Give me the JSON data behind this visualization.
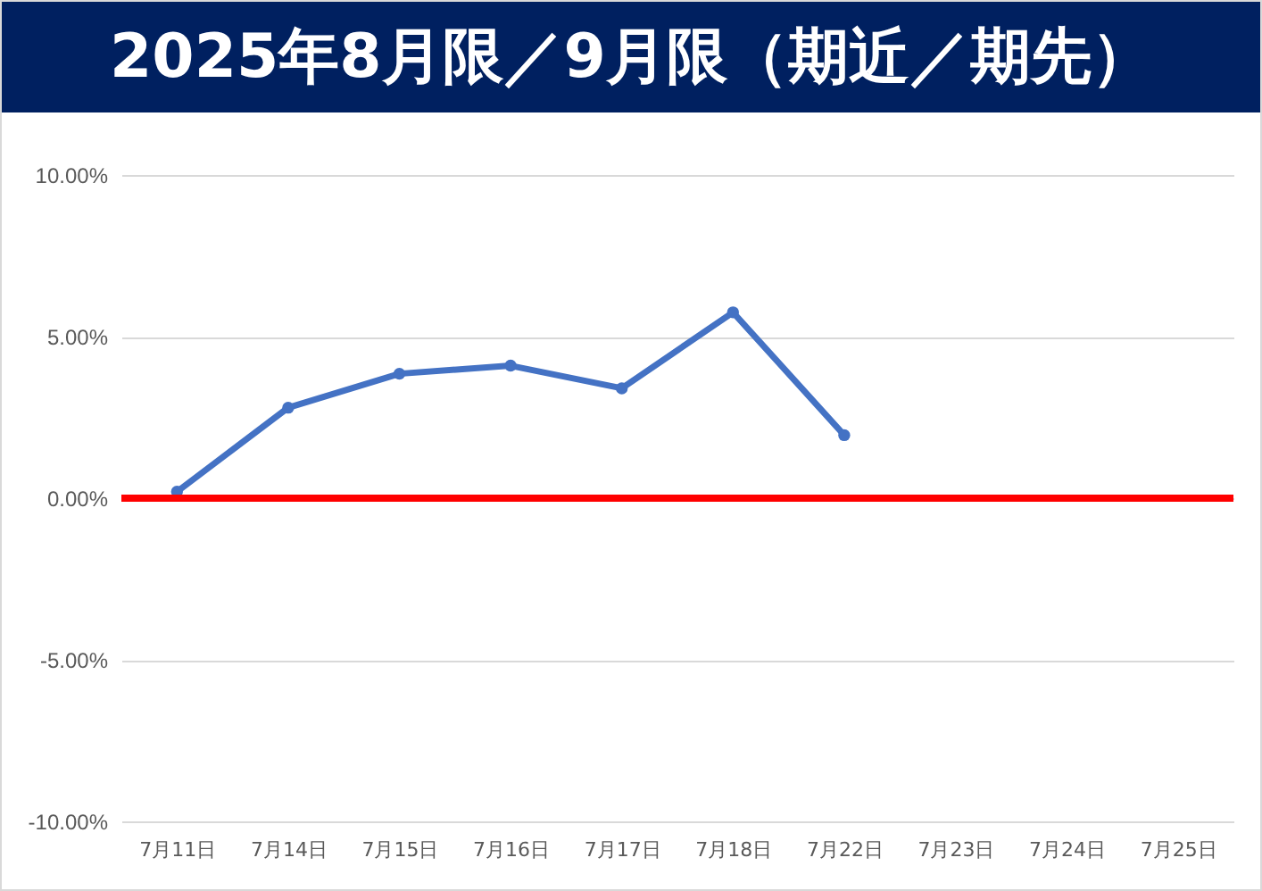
{
  "chart_data": {
    "type": "line",
    "title": "2025年8月限／9月限（期近／期先）",
    "categories": [
      "7月11日",
      "7月14日",
      "7月15日",
      "7月16日",
      "7月17日",
      "7月18日",
      "7月22日",
      "7月23日",
      "7月24日",
      "7月25日"
    ],
    "series": [
      {
        "color": "#4472c4",
        "values": [
          0.2,
          2.8,
          3.85,
          4.1,
          3.4,
          5.75,
          1.95,
          null,
          null,
          null
        ]
      }
    ],
    "ylim": [
      -10,
      10
    ],
    "yticks": [
      {
        "value": -10,
        "label": "-10.00%"
      },
      {
        "value": -5,
        "label": "-5.00%"
      },
      {
        "value": 0,
        "label": "0.00%"
      },
      {
        "value": 5,
        "label": "5.00%"
      },
      {
        "value": 10,
        "label": "10.00%"
      }
    ],
    "grid": "y",
    "marker": "circle",
    "line_style": "solid",
    "ref_lines": [
      {
        "axis": "y",
        "value": 0,
        "label": null,
        "color": "#ff0000",
        "line_style": "solid"
      }
    ]
  }
}
